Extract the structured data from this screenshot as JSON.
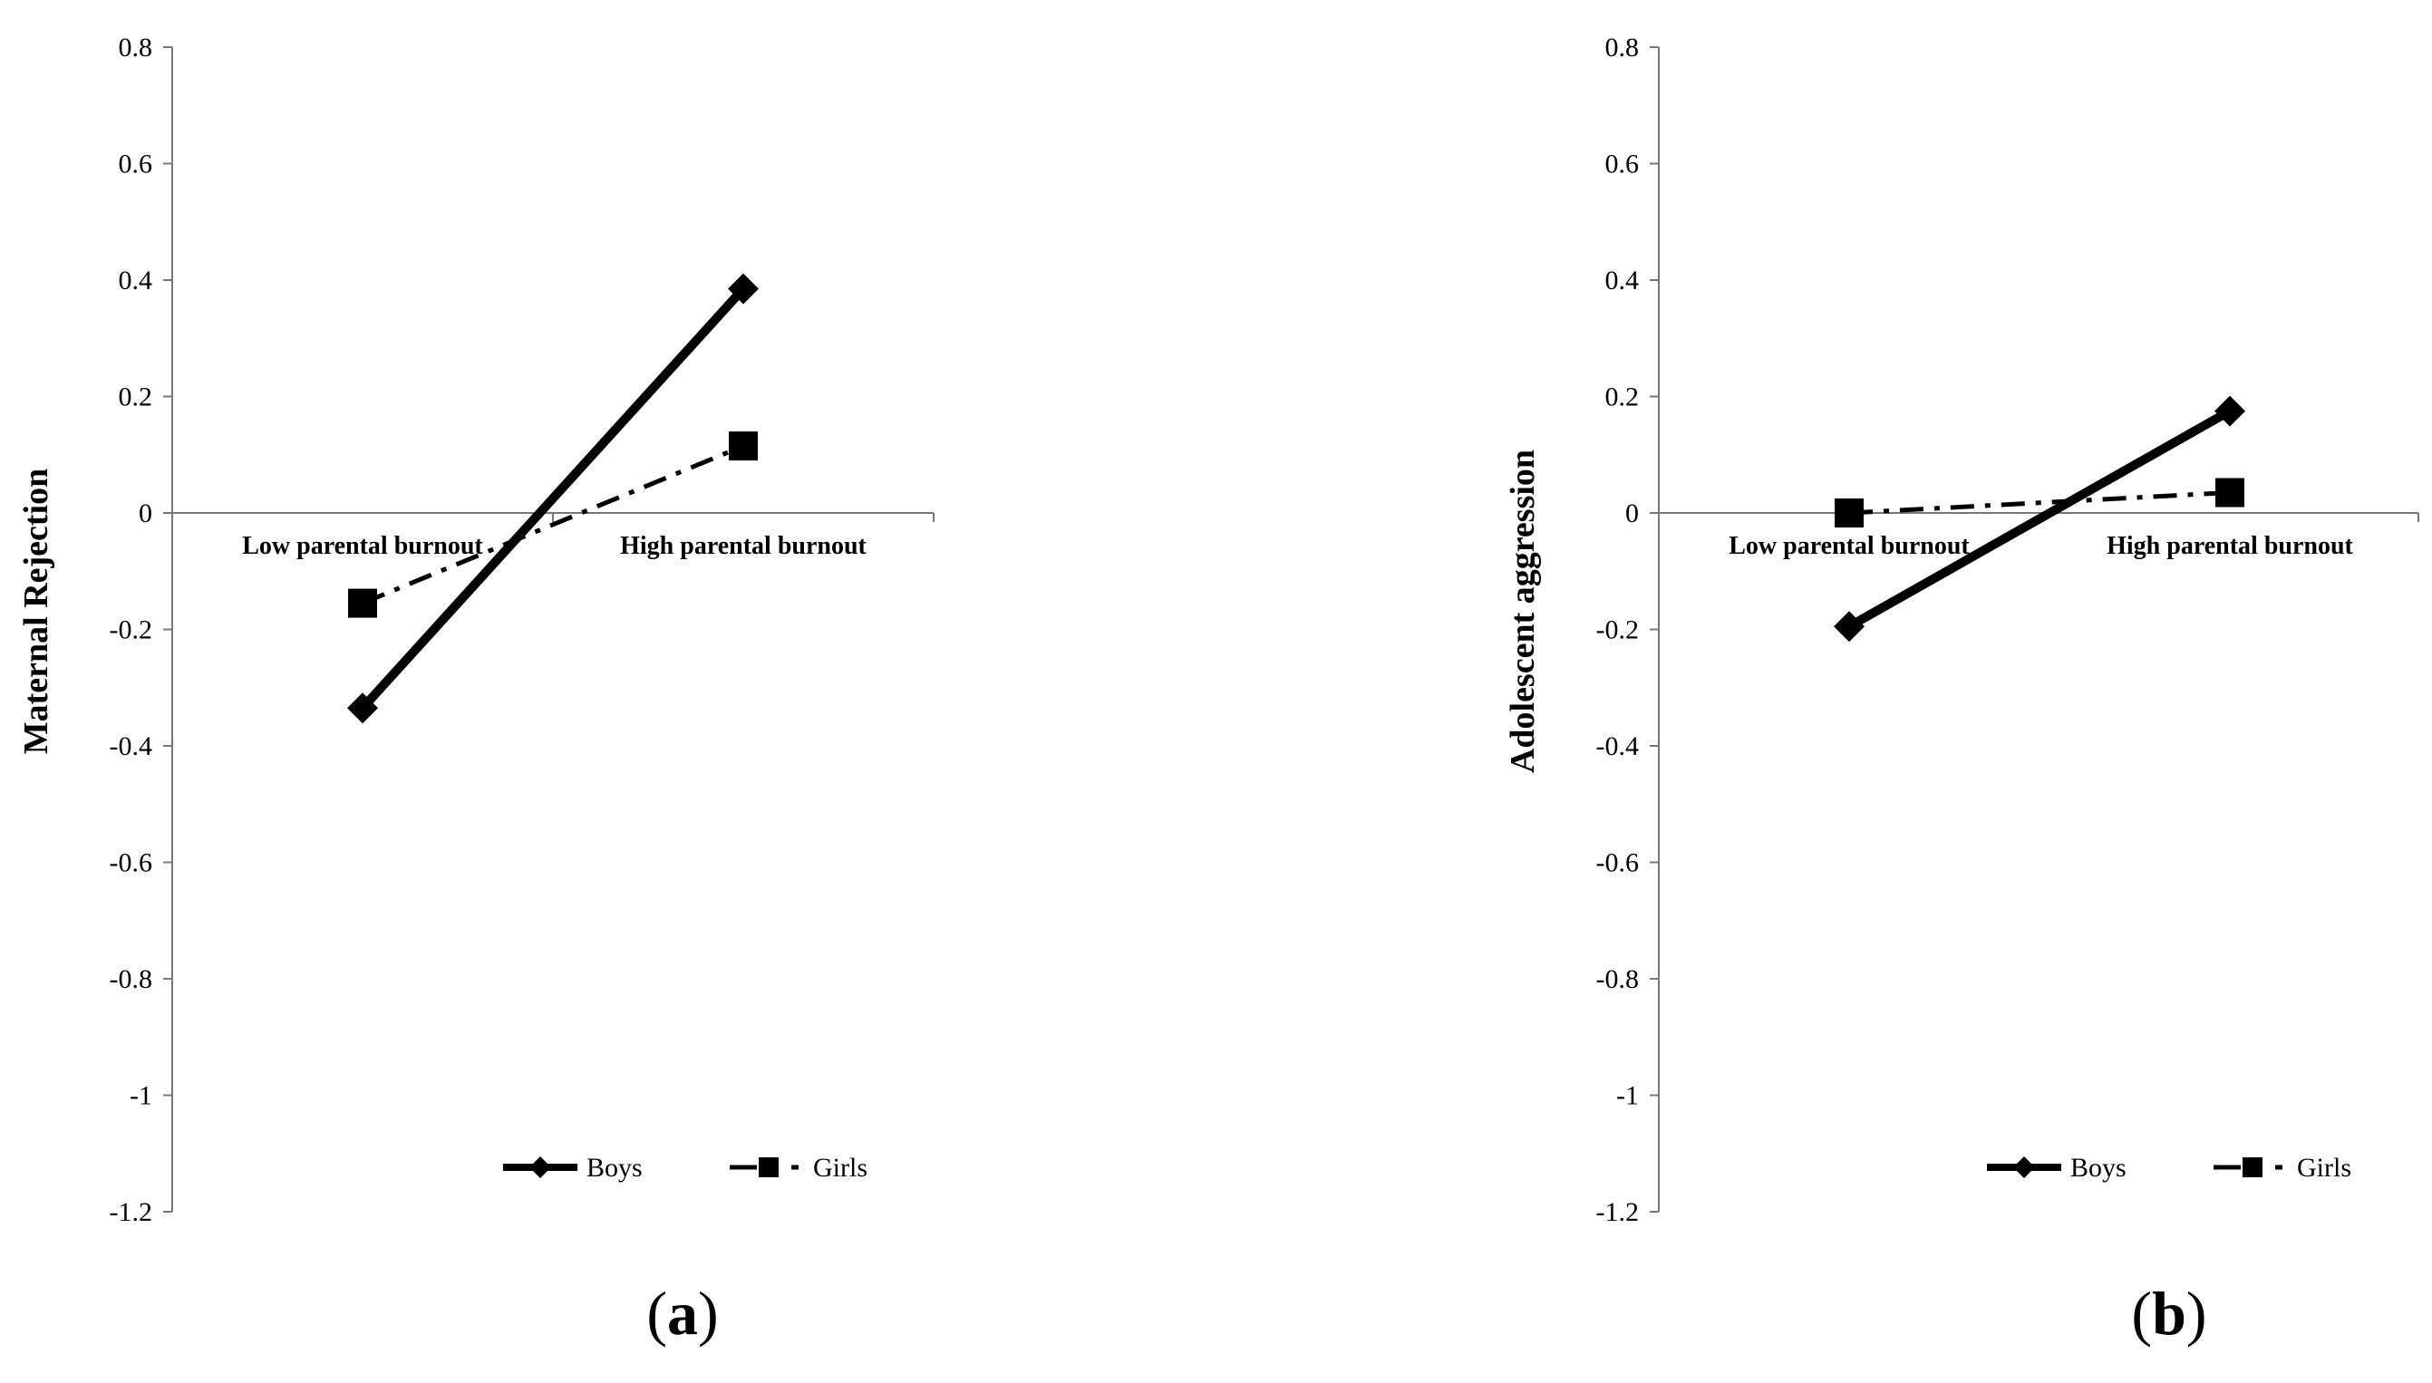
{
  "chart_data": [
    {
      "type": "line",
      "panel_label": "(a)",
      "panel_letter": "a",
      "categories": [
        "Low parental burnout",
        "High parental burnout"
      ],
      "ylabel": "Maternal Rejection",
      "xlabel": "",
      "ylim": [
        -1.2,
        0.8
      ],
      "yticks": [
        "0.8",
        "0.6",
        "0.4",
        "0.2",
        "0",
        "-0.2",
        "-0.4",
        "-0.6",
        "-0.8",
        "-1",
        "-1.2"
      ],
      "ytick_values": [
        0.8,
        0.6,
        0.4,
        0.2,
        0,
        -0.2,
        -0.4,
        -0.6,
        -0.8,
        -1,
        -1.2
      ],
      "grid": false,
      "legend_position": "bottom",
      "series": [
        {
          "name": "Boys",
          "values": [
            -0.335,
            0.385
          ],
          "marker": "diamond",
          "line_style": "solid"
        },
        {
          "name": "Girls",
          "values": [
            -0.155,
            0.115
          ],
          "marker": "square",
          "line_style": "dash-dot"
        }
      ]
    },
    {
      "type": "line",
      "panel_label": "(b)",
      "panel_letter": "b",
      "categories": [
        "Low parental burnout",
        "High parental burnout"
      ],
      "ylabel": "Adolescent aggression",
      "xlabel": "",
      "ylim": [
        -1.2,
        0.8
      ],
      "yticks": [
        "0.8",
        "0.6",
        "0.4",
        "0.2",
        "0",
        "-0.2",
        "-0.4",
        "-0.6",
        "-0.8",
        "-1",
        "-1.2"
      ],
      "ytick_values": [
        0.8,
        0.6,
        0.4,
        0.2,
        0,
        -0.2,
        -0.4,
        -0.6,
        -0.8,
        -1,
        -1.2
      ],
      "grid": false,
      "legend_position": "bottom",
      "series": [
        {
          "name": "Boys",
          "values": [
            -0.195,
            0.175
          ],
          "marker": "diamond",
          "line_style": "solid"
        },
        {
          "name": "Girls",
          "values": [
            0.0,
            0.035
          ],
          "marker": "square",
          "line_style": "dash-dot"
        }
      ]
    }
  ]
}
